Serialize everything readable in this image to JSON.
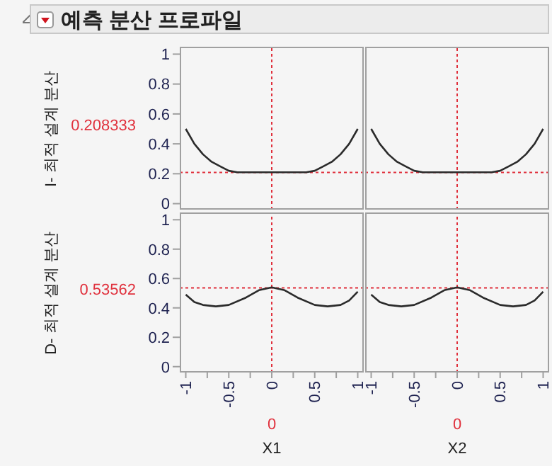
{
  "chart_data": [
    {
      "type": "line",
      "title": "예측 분산 프로파일",
      "ylabel": "I- 최적 설계 분산",
      "x": [
        -1,
        -0.9,
        -0.8,
        -0.7,
        -0.6,
        -0.5,
        -0.4,
        -0.2,
        0,
        0.2,
        0.4,
        0.5,
        0.6,
        0.7,
        0.8,
        0.9,
        1
      ],
      "series": [
        {
          "color": "#2b2b2b",
          "values": [
            0.5,
            0.4,
            0.33,
            0.28,
            0.25,
            0.22,
            0.21,
            0.21,
            0.21,
            0.21,
            0.21,
            0.22,
            0.25,
            0.28,
            0.33,
            0.4,
            0.5
          ]
        }
      ],
      "xlim": [
        -1.07,
        1.07
      ],
      "ylim": [
        -0.04,
        1.04
      ],
      "yticks": [
        0,
        0.2,
        0.4,
        0.6,
        0.8,
        1
      ],
      "ref_lines": [
        {
          "axis": "x",
          "value": 0,
          "label": null,
          "color": "#e0303c",
          "line_style": "dotted"
        },
        {
          "axis": "y",
          "value": 0.208333,
          "label": "0.208333",
          "color": "#e0303c",
          "line_style": "dotted"
        }
      ],
      "tick_labels": "y",
      "marker": "none",
      "line_style": "solid",
      "grid": false,
      "legend": false
    },
    {
      "type": "line",
      "x": [
        -1,
        -0.9,
        -0.8,
        -0.7,
        -0.6,
        -0.5,
        -0.4,
        -0.2,
        0,
        0.2,
        0.4,
        0.5,
        0.6,
        0.7,
        0.8,
        0.9,
        1
      ],
      "series": [
        {
          "color": "#2b2b2b",
          "values": [
            0.5,
            0.4,
            0.33,
            0.28,
            0.25,
            0.22,
            0.21,
            0.21,
            0.21,
            0.21,
            0.21,
            0.22,
            0.25,
            0.28,
            0.33,
            0.4,
            0.5
          ]
        }
      ],
      "xlim": [
        -1.07,
        1.07
      ],
      "ylim": [
        -0.04,
        1.04
      ],
      "ref_lines": [
        {
          "axis": "x",
          "value": 0,
          "label": null,
          "color": "#e0303c",
          "line_style": "dotted"
        },
        {
          "axis": "y",
          "value": 0.208333,
          "label": null,
          "color": "#e0303c",
          "line_style": "dotted"
        }
      ],
      "tick_labels": false,
      "marker": "none",
      "line_style": "solid",
      "grid": false,
      "legend": false
    },
    {
      "type": "line",
      "ylabel": "D- 최적 설계 분산",
      "xlabel": "X1",
      "x": [
        -1,
        -0.9,
        -0.8,
        -0.65,
        -0.5,
        -0.3,
        -0.15,
        0,
        0.15,
        0.3,
        0.5,
        0.65,
        0.8,
        0.9,
        1
      ],
      "series": [
        {
          "color": "#2b2b2b",
          "values": [
            0.49,
            0.44,
            0.42,
            0.41,
            0.42,
            0.47,
            0.52,
            0.54,
            0.52,
            0.47,
            0.42,
            0.41,
            0.42,
            0.45,
            0.51
          ]
        }
      ],
      "xlim": [
        -1.07,
        1.07
      ],
      "ylim": [
        -0.04,
        1.04
      ],
      "yticks": [
        0,
        0.2,
        0.4,
        0.6,
        0.8,
        1
      ],
      "xticks": [
        -1,
        {
          "value": -0.75,
          "label": null
        },
        -0.5,
        {
          "value": -0.25,
          "label": null
        },
        0,
        {
          "value": 0.25,
          "label": null
        },
        0.5,
        {
          "value": 0.75,
          "label": null
        },
        1
      ],
      "ref_lines": [
        {
          "axis": "x",
          "value": 0,
          "label": "0",
          "color": "#e0303c",
          "line_style": "dotted"
        },
        {
          "axis": "y",
          "value": 0.53562,
          "label": "0.53562",
          "color": "#e0303c",
          "line_style": "dotted"
        }
      ],
      "marker": "none",
      "line_style": "solid",
      "grid": false,
      "legend": false
    },
    {
      "type": "line",
      "xlabel": "X2",
      "x": [
        -1,
        -0.9,
        -0.8,
        -0.65,
        -0.5,
        -0.3,
        -0.15,
        0,
        0.15,
        0.3,
        0.5,
        0.65,
        0.8,
        0.9,
        1
      ],
      "series": [
        {
          "color": "#2b2b2b",
          "values": [
            0.49,
            0.44,
            0.42,
            0.41,
            0.42,
            0.47,
            0.52,
            0.54,
            0.52,
            0.47,
            0.42,
            0.41,
            0.42,
            0.45,
            0.51
          ]
        }
      ],
      "xlim": [
        -1.07,
        1.07
      ],
      "ylim": [
        -0.04,
        1.04
      ],
      "xticks": [
        -1,
        {
          "value": -0.75,
          "label": null
        },
        -0.5,
        {
          "value": -0.25,
          "label": null
        },
        0,
        {
          "value": 0.25,
          "label": null
        },
        0.5,
        {
          "value": 0.75,
          "label": null
        },
        1
      ],
      "ref_lines": [
        {
          "axis": "x",
          "value": 0,
          "label": "0",
          "color": "#e0303c",
          "line_style": "dotted"
        },
        {
          "axis": "y",
          "value": 0.53562,
          "label": null,
          "color": "#e0303c",
          "line_style": "dotted"
        }
      ],
      "tick_labels": "x",
      "marker": "none",
      "line_style": "solid",
      "grid": false,
      "legend": false
    }
  ]
}
